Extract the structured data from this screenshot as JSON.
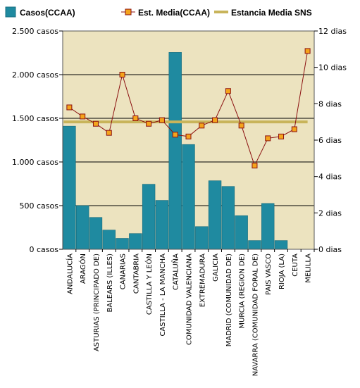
{
  "chart_data": {
    "type": "bar",
    "title": "",
    "xlabel": "",
    "legend": {
      "placement": "top",
      "entries": [
        "Casos(CCAA)",
        "Est. Media(CCAA)",
        "Estancia Media SNS"
      ]
    },
    "categories": [
      "ANDALUCÍA",
      "ARAGÓN",
      "ASTURIAS (PRINCIPADO DE)",
      "BALEARS (ILLES)",
      "CANARIAS",
      "CANTABRIA",
      "CASTILLA Y LEÓN",
      "CASTILLA - LA MANCHA",
      "CATALUÑA",
      "COMUNIDAD VALENCIANA",
      "EXTREMADURA",
      "GALICIA",
      "MADRID (COMUNIDAD DE)",
      "MURCIA (REGION DE)",
      "NAVARRA (COMUNIDAD FORAL DE)",
      "PAIS VASCO",
      "RIOJA (LA)",
      "CEUTA",
      "MELILLA"
    ],
    "series": [
      {
        "name": "Casos(CCAA)",
        "kind": "bar",
        "axis": "left",
        "color": "#1f8aa0",
        "values": [
          1410,
          500,
          365,
          220,
          125,
          180,
          745,
          560,
          2255,
          1200,
          260,
          785,
          720,
          385,
          100,
          525,
          100,
          0,
          0
        ]
      },
      {
        "name": "Est. Media(CCAA)",
        "kind": "line",
        "axis": "right",
        "color": "#8b1010",
        "marker_color": "#f4a41c",
        "values": [
          7.8,
          7.3,
          6.9,
          6.4,
          9.6,
          7.2,
          6.9,
          7.1,
          6.3,
          6.2,
          6.8,
          7.1,
          8.7,
          6.8,
          4.6,
          6.1,
          6.2,
          6.6,
          10.9
        ]
      },
      {
        "name": "Estancia Media SNS",
        "kind": "reference-line",
        "axis": "right",
        "color": "#c8b45a",
        "value": 7.0
      }
    ],
    "y_left": {
      "label": "",
      "range": [
        0,
        2500
      ],
      "ticks": [
        0,
        500,
        1000,
        1500,
        2000,
        2500
      ],
      "tick_labels": [
        "0 casos",
        "500 casos",
        "1.000 casos",
        "1.500 casos",
        "2.000 casos",
        "2.500 casos"
      ]
    },
    "y_right": {
      "label": "",
      "range": [
        0,
        12
      ],
      "ticks": [
        0,
        2,
        4,
        6,
        8,
        10,
        12
      ],
      "tick_labels": [
        "0 dias",
        "2 dias",
        "4 dias",
        "6 dias",
        "8 dias",
        "10 dias",
        "12 dias"
      ]
    },
    "grid": true,
    "plot_background": "#ece3bf"
  }
}
